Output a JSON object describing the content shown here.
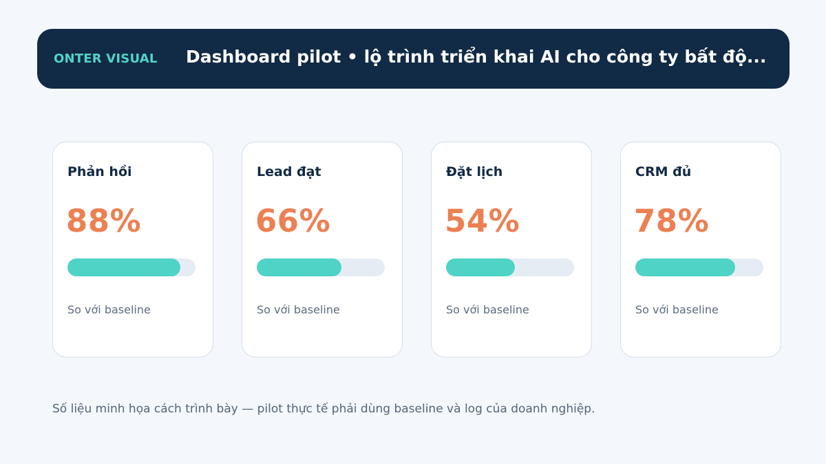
{
  "header": {
    "brand": "ONTER VISUAL",
    "title": "Dashboard pilot • lộ trình triển khai AI cho công ty bất độ..."
  },
  "cards": [
    {
      "label": "Phản hồi",
      "value": "88%",
      "progress": 0.88,
      "note": "So với baseline"
    },
    {
      "label": "Lead đạt",
      "value": "66%",
      "progress": 0.66,
      "note": "So với baseline"
    },
    {
      "label": "Đặt lịch",
      "value": "54%",
      "progress": 0.54,
      "note": "So với baseline"
    },
    {
      "label": "CRM đủ",
      "value": "78%",
      "progress": 0.78,
      "note": "So với baseline"
    }
  ],
  "footnote": "Số liệu minh họa cách trình bày — pilot thực tế phải dùng baseline và log của doanh nghiệp.",
  "colors": {
    "header_bg": "#112a45",
    "brand": "#52d4c7",
    "value": "#ec8052",
    "bar_fill": "#4fd3c6",
    "bar_track": "#e6ecf3"
  }
}
